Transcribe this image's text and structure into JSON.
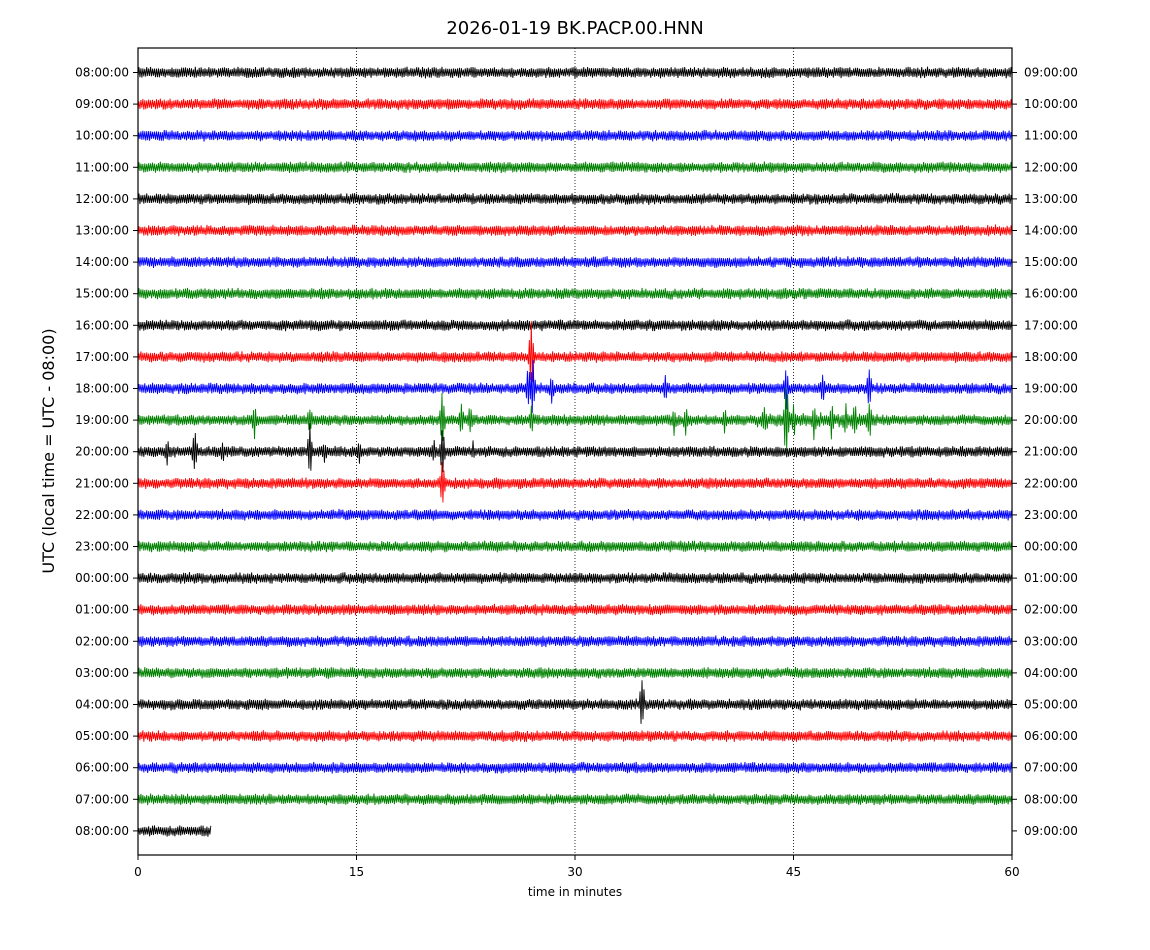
{
  "chart_data": {
    "type": "line",
    "title": "2026-01-19 BK.PACP.00.HNN",
    "xlabel": "time in minutes",
    "ylabel": "UTC (local time = UTC - 08:00)",
    "xlim": [
      0,
      60
    ],
    "x_ticks": [
      "0",
      "15",
      "30",
      "45",
      "60"
    ],
    "x_tick_values": [
      0,
      15,
      30,
      45,
      60
    ],
    "grid": "vertical dotted",
    "color_cycle": [
      "#000000",
      "#ff0000",
      "#0000ff",
      "#008000"
    ],
    "left_labels": [
      "08:00:00",
      "09:00:00",
      "10:00:00",
      "11:00:00",
      "12:00:00",
      "13:00:00",
      "14:00:00",
      "15:00:00",
      "16:00:00",
      "17:00:00",
      "18:00:00",
      "19:00:00",
      "20:00:00",
      "21:00:00",
      "22:00:00",
      "23:00:00",
      "00:00:00",
      "01:00:00",
      "02:00:00",
      "03:00:00",
      "04:00:00",
      "05:00:00",
      "06:00:00",
      "07:00:00",
      "08:00:00"
    ],
    "right_labels": [
      "09:00:00",
      "10:00:00",
      "11:00:00",
      "12:00:00",
      "13:00:00",
      "14:00:00",
      "15:00:00",
      "16:00:00",
      "17:00:00",
      "18:00:00",
      "19:00:00",
      "20:00:00",
      "21:00:00",
      "22:00:00",
      "23:00:00",
      "00:00:00",
      "01:00:00",
      "02:00:00",
      "03:00:00",
      "04:00:00",
      "05:00:00",
      "06:00:00",
      "07:00:00",
      "08:00:00",
      "09:00:00"
    ],
    "last_trace_end_minute": 5,
    "events": [
      {
        "row": 9,
        "minute": 27.0,
        "amplitude": 2.8
      },
      {
        "row": 10,
        "minute": 26.8,
        "amplitude": 1.4
      },
      {
        "row": 10,
        "minute": 27.1,
        "amplitude": 2.0
      },
      {
        "row": 10,
        "minute": 28.4,
        "amplitude": 1.0
      },
      {
        "row": 10,
        "minute": 36.2,
        "amplitude": 0.9
      },
      {
        "row": 10,
        "minute": 44.5,
        "amplitude": 1.6
      },
      {
        "row": 10,
        "minute": 47.0,
        "amplitude": 1.0
      },
      {
        "row": 10,
        "minute": 50.2,
        "amplitude": 1.5
      },
      {
        "row": 11,
        "minute": 8.0,
        "amplitude": 1.2
      },
      {
        "row": 11,
        "minute": 11.8,
        "amplitude": 1.0
      },
      {
        "row": 11,
        "minute": 20.9,
        "amplitude": 1.8
      },
      {
        "row": 11,
        "minute": 22.2,
        "amplitude": 1.2
      },
      {
        "row": 11,
        "minute": 22.8,
        "amplitude": 1.0
      },
      {
        "row": 11,
        "minute": 27.0,
        "amplitude": 1.0
      },
      {
        "row": 11,
        "minute": 36.8,
        "amplitude": 1.0
      },
      {
        "row": 11,
        "minute": 37.6,
        "amplitude": 1.0
      },
      {
        "row": 11,
        "minute": 40.3,
        "amplitude": 0.9
      },
      {
        "row": 11,
        "minute": 43.0,
        "amplitude": 1.0
      },
      {
        "row": 11,
        "minute": 44.5,
        "amplitude": 2.6
      },
      {
        "row": 11,
        "minute": 45.0,
        "amplitude": 1.2
      },
      {
        "row": 11,
        "minute": 46.4,
        "amplitude": 1.2
      },
      {
        "row": 11,
        "minute": 47.6,
        "amplitude": 1.2
      },
      {
        "row": 11,
        "minute": 48.6,
        "amplitude": 1.0
      },
      {
        "row": 11,
        "minute": 49.2,
        "amplitude": 1.2
      },
      {
        "row": 11,
        "minute": 50.2,
        "amplitude": 1.4
      },
      {
        "row": 12,
        "minute": 2.0,
        "amplitude": 1.0
      },
      {
        "row": 12,
        "minute": 3.9,
        "amplitude": 1.7
      },
      {
        "row": 12,
        "minute": 5.8,
        "amplitude": 0.8
      },
      {
        "row": 12,
        "minute": 11.8,
        "amplitude": 1.7
      },
      {
        "row": 12,
        "minute": 12.8,
        "amplitude": 0.8
      },
      {
        "row": 12,
        "minute": 15.2,
        "amplitude": 0.8
      },
      {
        "row": 12,
        "minute": 20.3,
        "amplitude": 0.8
      },
      {
        "row": 12,
        "minute": 20.9,
        "amplitude": 1.7
      },
      {
        "row": 12,
        "minute": 23.0,
        "amplitude": 0.7
      },
      {
        "row": 13,
        "minute": 20.9,
        "amplitude": 1.5
      },
      {
        "row": 20,
        "minute": 34.6,
        "amplitude": 1.9
      }
    ],
    "wide_bursts": [
      {
        "row": 10,
        "from": 25.5,
        "to": 30.5,
        "amplitude": 0.6
      },
      {
        "row": 11,
        "from": 42.5,
        "to": 51.0,
        "amplitude": 0.9
      },
      {
        "row": 11,
        "from": 36.0,
        "to": 38.5,
        "amplitude": 0.6
      }
    ]
  }
}
